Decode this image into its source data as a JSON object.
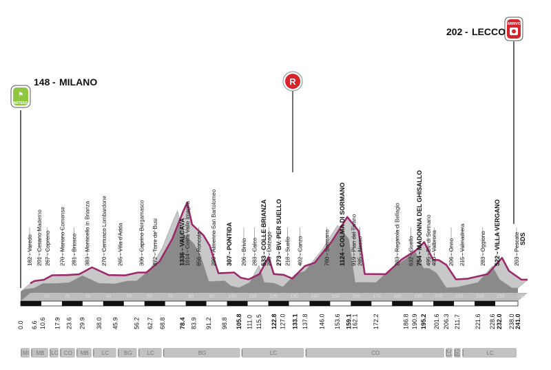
{
  "chart_data": {
    "type": "area",
    "title": "",
    "start": {
      "name": "MILANO",
      "alt": "148",
      "badge": "PARTENZA"
    },
    "finish": {
      "name": "LECCO",
      "alt": "202",
      "badge": "ARRIVO"
    },
    "refuel_badge": "R",
    "end_code": "SDS",
    "colors": {
      "profile_line": "#9b2a6b",
      "profile_fill": "#c8c8c8",
      "profile_side": "#8a8a8a",
      "badge_start": "#8fc63f",
      "badge_red": "#d8232a",
      "province_strip": "#c2c2c2"
    },
    "profile": [
      {
        "km": 0,
        "alt": 148
      },
      {
        "km": 2.0,
        "alt": 182
      },
      {
        "km": 6.6,
        "alt": 201
      },
      {
        "km": 10.6,
        "alt": 267
      },
      {
        "km": 17.9,
        "alt": 270
      },
      {
        "km": 23.6,
        "alt": 281
      },
      {
        "km": 29.9,
        "alt": 383
      },
      {
        "km": 38.0,
        "alt": 270
      },
      {
        "km": 45.9,
        "alt": 265
      },
      {
        "km": 52.0,
        "alt": 306
      },
      {
        "km": 56.2,
        "alt": 306
      },
      {
        "km": 62.7,
        "alt": 472
      },
      {
        "km": 68.8,
        "alt": 800
      },
      {
        "km": 74.0,
        "alt": 1200
      },
      {
        "km": 76.0,
        "alt": 1336
      },
      {
        "km": 78.4,
        "alt": 1014
      },
      {
        "km": 83.9,
        "alt": 856
      },
      {
        "km": 87.0,
        "alt": 700
      },
      {
        "km": 91.2,
        "alt": 296
      },
      {
        "km": 98.8,
        "alt": 307
      },
      {
        "km": 102.0,
        "alt": 230
      },
      {
        "km": 105.8,
        "alt": 206
      },
      {
        "km": 111.0,
        "alt": 283
      },
      {
        "km": 115.5,
        "alt": 533
      },
      {
        "km": 118.0,
        "alt": 285
      },
      {
        "km": 122.8,
        "alt": 273
      },
      {
        "km": 127.0,
        "alt": 218
      },
      {
        "km": 133.1,
        "alt": 402
      },
      {
        "km": 137.8,
        "alt": 450
      },
      {
        "km": 146.0,
        "alt": 760
      },
      {
        "km": 153.6,
        "alt": 1124
      },
      {
        "km": 159.1,
        "alt": 919
      },
      {
        "km": 162.1,
        "alt": 285
      },
      {
        "km": 172.2,
        "alt": 283
      },
      {
        "km": 180.0,
        "alt": 500
      },
      {
        "km": 186.8,
        "alt": 632
      },
      {
        "km": 190.9,
        "alt": 754
      },
      {
        "km": 195.2,
        "alt": 495
      },
      {
        "km": 198.0,
        "alt": 490
      },
      {
        "km": 201.6,
        "alt": 420
      },
      {
        "km": 206.3,
        "alt": 206
      },
      {
        "km": 211.7,
        "alt": 215
      },
      {
        "km": 221.6,
        "alt": 283
      },
      {
        "km": 228.6,
        "alt": 522
      },
      {
        "km": 232.0,
        "alt": 330
      },
      {
        "km": 238.0,
        "alt": 203
      },
      {
        "km": 241.0,
        "alt": 202
      }
    ],
    "waypoints": [
      {
        "km": 2.0,
        "label": "182 - Varedo"
      },
      {
        "km": 6.6,
        "label": "201 - Cesano Maderno"
      },
      {
        "km": 10.6,
        "label": "267 - Copreno"
      },
      {
        "km": 17.9,
        "label": "270 - Mariano Comense"
      },
      {
        "km": 23.6,
        "label": "281 - Briosco"
      },
      {
        "km": 29.9,
        "label": "383 - Monticello in Brianza"
      },
      {
        "km": 38.0,
        "label": "270 - Cernusco Lombardone"
      },
      {
        "km": 45.9,
        "label": "265 - Villa d'Adda"
      },
      {
        "km": 56.2,
        "label": "306 - Caprino Bergamasco"
      },
      {
        "km": 62.7,
        "label": "472 - Torre de' Busi"
      },
      {
        "km": 76.0,
        "label": "1336 - VALCAVA",
        "bold": true
      },
      {
        "km": 78.4,
        "label": "1014 - Costa Valle Imagna"
      },
      {
        "km": 83.9,
        "label": "856 - Roncola"
      },
      {
        "km": 91.2,
        "label": "296 - Almenno San Bartolomeo"
      },
      {
        "km": 98.8,
        "label": "307 - PONTIDA",
        "bold": true
      },
      {
        "km": 105.8,
        "label": "206 - Brivio"
      },
      {
        "km": 111.0,
        "label": "283 - Calco"
      },
      {
        "km": 115.5,
        "label": "533 - COLLE BRIANZA",
        "bold": true
      },
      {
        "km": 118.0,
        "label": "285 - Dolzago"
      },
      {
        "km": 122.8,
        "label": "273 - BV. PER SUELLO",
        "bold": true
      },
      {
        "km": 127.0,
        "label": "218 - Suello"
      },
      {
        "km": 133.1,
        "label": "402 - Canzo"
      },
      {
        "km": 146.0,
        "label": "760 - Sormano"
      },
      {
        "km": 153.6,
        "label": "1124 - COLMA DI SORMANO",
        "bold": true
      },
      {
        "km": 159.1,
        "label": "919 - Pian del Tivano"
      },
      {
        "km": 162.1,
        "label": "285 - Nesso"
      },
      {
        "km": 180.0,
        "label": "283 - Regatola di Bellagio"
      },
      {
        "km": 186.8,
        "label": "632 - Guello"
      },
      {
        "km": 190.9,
        "label": "754 - MADONNA DEL GHISALLO",
        "bold": true
      },
      {
        "km": 195.2,
        "label": "495 - Bv. di Sormano"
      },
      {
        "km": 198.0,
        "label": "490 - Valbrona"
      },
      {
        "km": 206.3,
        "label": "206 - Onno"
      },
      {
        "km": 211.7,
        "label": "215 - Valmadrera"
      },
      {
        "km": 221.6,
        "label": "283 - Oggiono"
      },
      {
        "km": 228.6,
        "label": "522 - VILLA VERGANO",
        "bold": true
      },
      {
        "km": 238.0,
        "label": "203 - Pescate"
      }
    ],
    "km_labels": [
      {
        "km": 0,
        "text": "0.0"
      },
      {
        "km": 6.6,
        "text": "6.6"
      },
      {
        "km": 10.6,
        "text": "10.6"
      },
      {
        "km": 17.9,
        "text": "17.9"
      },
      {
        "km": 23.6,
        "text": "23.6"
      },
      {
        "km": 29.9,
        "text": "29.9"
      },
      {
        "km": 38.0,
        "text": "38.0"
      },
      {
        "km": 45.9,
        "text": "45.9"
      },
      {
        "km": 56.2,
        "text": "56.2"
      },
      {
        "km": 62.7,
        "text": "62.7"
      },
      {
        "km": 68.8,
        "text": "68.8"
      },
      {
        "km": 78.4,
        "text": "78.4",
        "bold": true
      },
      {
        "km": 83.9,
        "text": "83.9"
      },
      {
        "km": 91.2,
        "text": "91.2"
      },
      {
        "km": 98.8,
        "text": "98.8"
      },
      {
        "km": 105.8,
        "text": "105.8",
        "bold": true
      },
      {
        "km": 111.0,
        "text": "111.0"
      },
      {
        "km": 115.5,
        "text": "115.5"
      },
      {
        "km": 122.8,
        "text": "122.8",
        "bold": true
      },
      {
        "km": 127.0,
        "text": "127.0"
      },
      {
        "km": 133.1,
        "text": "133.1",
        "bold": true
      },
      {
        "km": 137.8,
        "text": "137.8"
      },
      {
        "km": 146.0,
        "text": "146.0"
      },
      {
        "km": 153.6,
        "text": "153.6"
      },
      {
        "km": 159.1,
        "text": "159.1",
        "bold": true
      },
      {
        "km": 162.1,
        "text": "162.1"
      },
      {
        "km": 172.2,
        "text": "172.2"
      },
      {
        "km": 186.8,
        "text": "186.8"
      },
      {
        "km": 190.9,
        "text": "190.9"
      },
      {
        "km": 195.2,
        "text": "195.2",
        "bold": true
      },
      {
        "km": 201.6,
        "text": "201.6"
      },
      {
        "km": 206.3,
        "text": "206.3"
      },
      {
        "km": 211.7,
        "text": "211.7"
      },
      {
        "km": 221.6,
        "text": "221.6"
      },
      {
        "km": 228.6,
        "text": "228.6"
      },
      {
        "km": 232.0,
        "text": "232.0",
        "bold": true
      },
      {
        "km": 238.0,
        "text": "238.0"
      },
      {
        "km": 241.0,
        "text": "241.0",
        "bold": true
      }
    ],
    "km_ticks": [
      10,
      20,
      30,
      40,
      50,
      60,
      70,
      80,
      90,
      100,
      110,
      120,
      130,
      140,
      150,
      160,
      170,
      180,
      190,
      200,
      210,
      220,
      230,
      240
    ],
    "provinces": [
      {
        "code": "MI",
        "from": 0,
        "to": 5
      },
      {
        "code": "MB",
        "from": 5,
        "to": 14
      },
      {
        "code": "LC",
        "from": 14,
        "to": 19
      },
      {
        "code": "CO",
        "from": 19,
        "to": 27
      },
      {
        "code": "MB",
        "from": 27,
        "to": 35
      },
      {
        "code": "LC",
        "from": 35,
        "to": 47
      },
      {
        "code": "BG",
        "from": 47,
        "to": 57
      },
      {
        "code": "LC",
        "from": 57,
        "to": 69
      },
      {
        "code": "BG",
        "from": 69,
        "to": 107
      },
      {
        "code": "LC",
        "from": 107,
        "to": 138
      },
      {
        "code": "CO",
        "from": 138,
        "to": 206
      },
      {
        "code": "LC",
        "from": 206,
        "to": 210
      },
      {
        "code": "BG",
        "from": 210,
        "to": 214
      },
      {
        "code": "LC",
        "from": 214,
        "to": 241
      }
    ]
  }
}
